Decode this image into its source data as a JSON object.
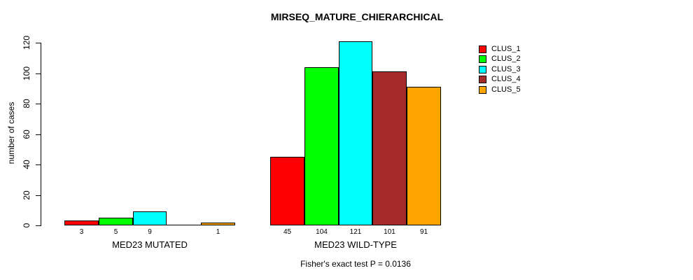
{
  "chart_data": {
    "type": "bar",
    "title": "MIRSEQ_MATURE_CHIERARCHICAL",
    "ylabel": "number of cases",
    "xlabel": "",
    "ylim": [
      0,
      120
    ],
    "yticks": [
      0,
      20,
      40,
      60,
      80,
      100,
      120
    ],
    "grid": false,
    "legend_position": "top-right",
    "series_names": [
      "CLUS_1",
      "CLUS_2",
      "CLUS_3",
      "CLUS_4",
      "CLUS_5"
    ],
    "colors": [
      "#ff0000",
      "#00ff00",
      "#00ffff",
      "#a52a2a",
      "#ffa500"
    ],
    "groups": [
      {
        "label": "MED23 MUTATED",
        "values": [
          3,
          5,
          9,
          0,
          1
        ]
      },
      {
        "label": "MED23 WILD-TYPE",
        "values": [
          45,
          104,
          121,
          101,
          91
        ]
      }
    ],
    "value_label_rule": "bar values printed under each bar; zero values have no bar and no label",
    "annotation": "Fisher's exact test P = 0.0136"
  }
}
